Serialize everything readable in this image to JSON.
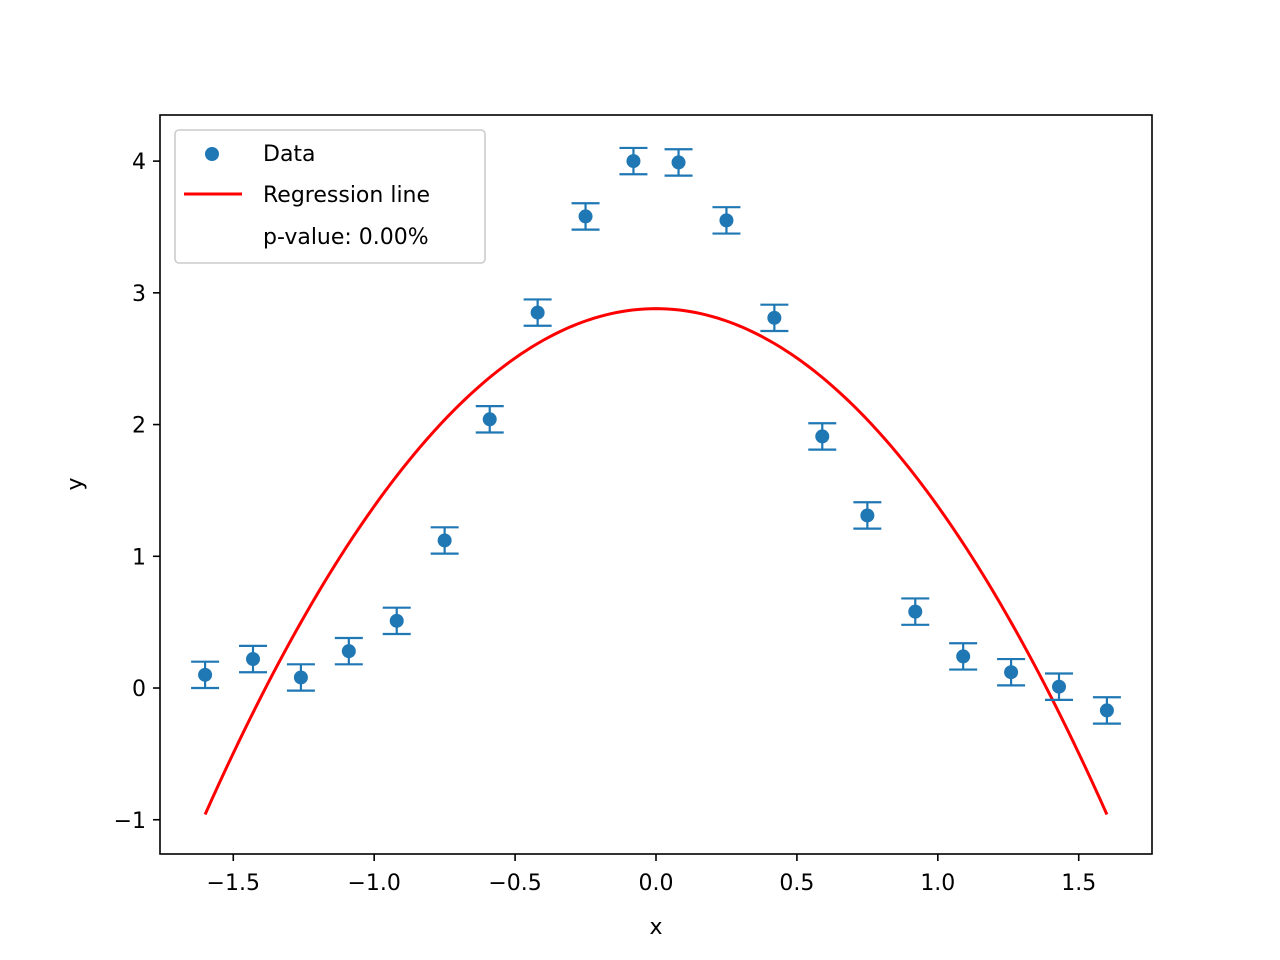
{
  "chart_data": {
    "type": "scatter",
    "xlabel": "x",
    "ylabel": "y",
    "xlim": [
      -1.76,
      1.76
    ],
    "ylim": [
      -1.26,
      4.35
    ],
    "xticks": [
      -1.5,
      -1.0,
      -0.5,
      0.0,
      0.5,
      1.0,
      1.5
    ],
    "xtick_labels": [
      "−1.5",
      "−1.0",
      "−0.5",
      "0.0",
      "0.5",
      "1.0",
      "1.5"
    ],
    "yticks": [
      -1,
      0,
      1,
      2,
      3,
      4
    ],
    "ytick_labels": [
      "−1",
      "0",
      "1",
      "2",
      "3",
      "4"
    ],
    "grid": false,
    "legend_position": "upper-left",
    "legend": [
      "Data",
      "Regression line",
      "p-value: 0.00%"
    ],
    "series": [
      {
        "name": "Data",
        "kind": "errorbar",
        "color": "#1f77b4",
        "x": [
          -1.6,
          -1.43,
          -1.26,
          -1.09,
          -0.92,
          -0.75,
          -0.59,
          -0.42,
          -0.25,
          -0.08,
          0.08,
          0.25,
          0.42,
          0.59,
          0.75,
          0.92,
          1.09,
          1.26,
          1.43,
          1.6
        ],
        "y": [
          0.1,
          0.22,
          0.08,
          0.28,
          0.51,
          1.12,
          2.04,
          2.85,
          3.58,
          4.0,
          3.99,
          3.55,
          2.81,
          1.91,
          1.31,
          0.58,
          0.24,
          0.12,
          0.01,
          -0.17
        ],
        "yerr": 0.1
      },
      {
        "name": "Regression line",
        "kind": "line",
        "color": "#ff0000",
        "x_range": [
          -1.6,
          1.6
        ],
        "coefficients": [
          2.88,
          0.0,
          -1.5
        ]
      }
    ]
  }
}
